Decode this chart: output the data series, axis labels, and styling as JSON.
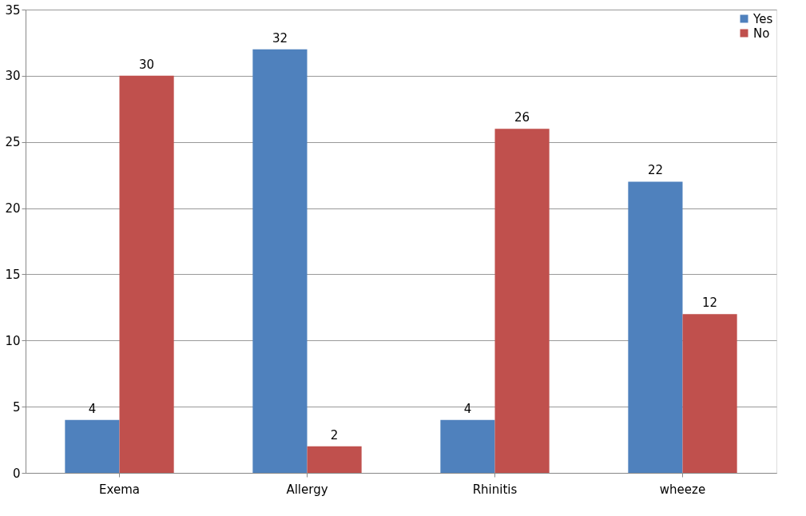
{
  "chart_data": {
    "type": "bar",
    "categories": [
      "Exema",
      "Allergy",
      "Rhinitis",
      "wheeze"
    ],
    "series": [
      {
        "name": "Yes",
        "color": "#4f81bd",
        "values": [
          4,
          32,
          4,
          22
        ]
      },
      {
        "name": "No",
        "color": "#c0504d",
        "values": [
          30,
          2,
          26,
          12
        ]
      }
    ],
    "ylim": [
      0,
      35
    ],
    "yticks": [
      0,
      5,
      10,
      15,
      20,
      25,
      30,
      35
    ],
    "grid": "y",
    "legend": "top right",
    "data_labels": true
  }
}
